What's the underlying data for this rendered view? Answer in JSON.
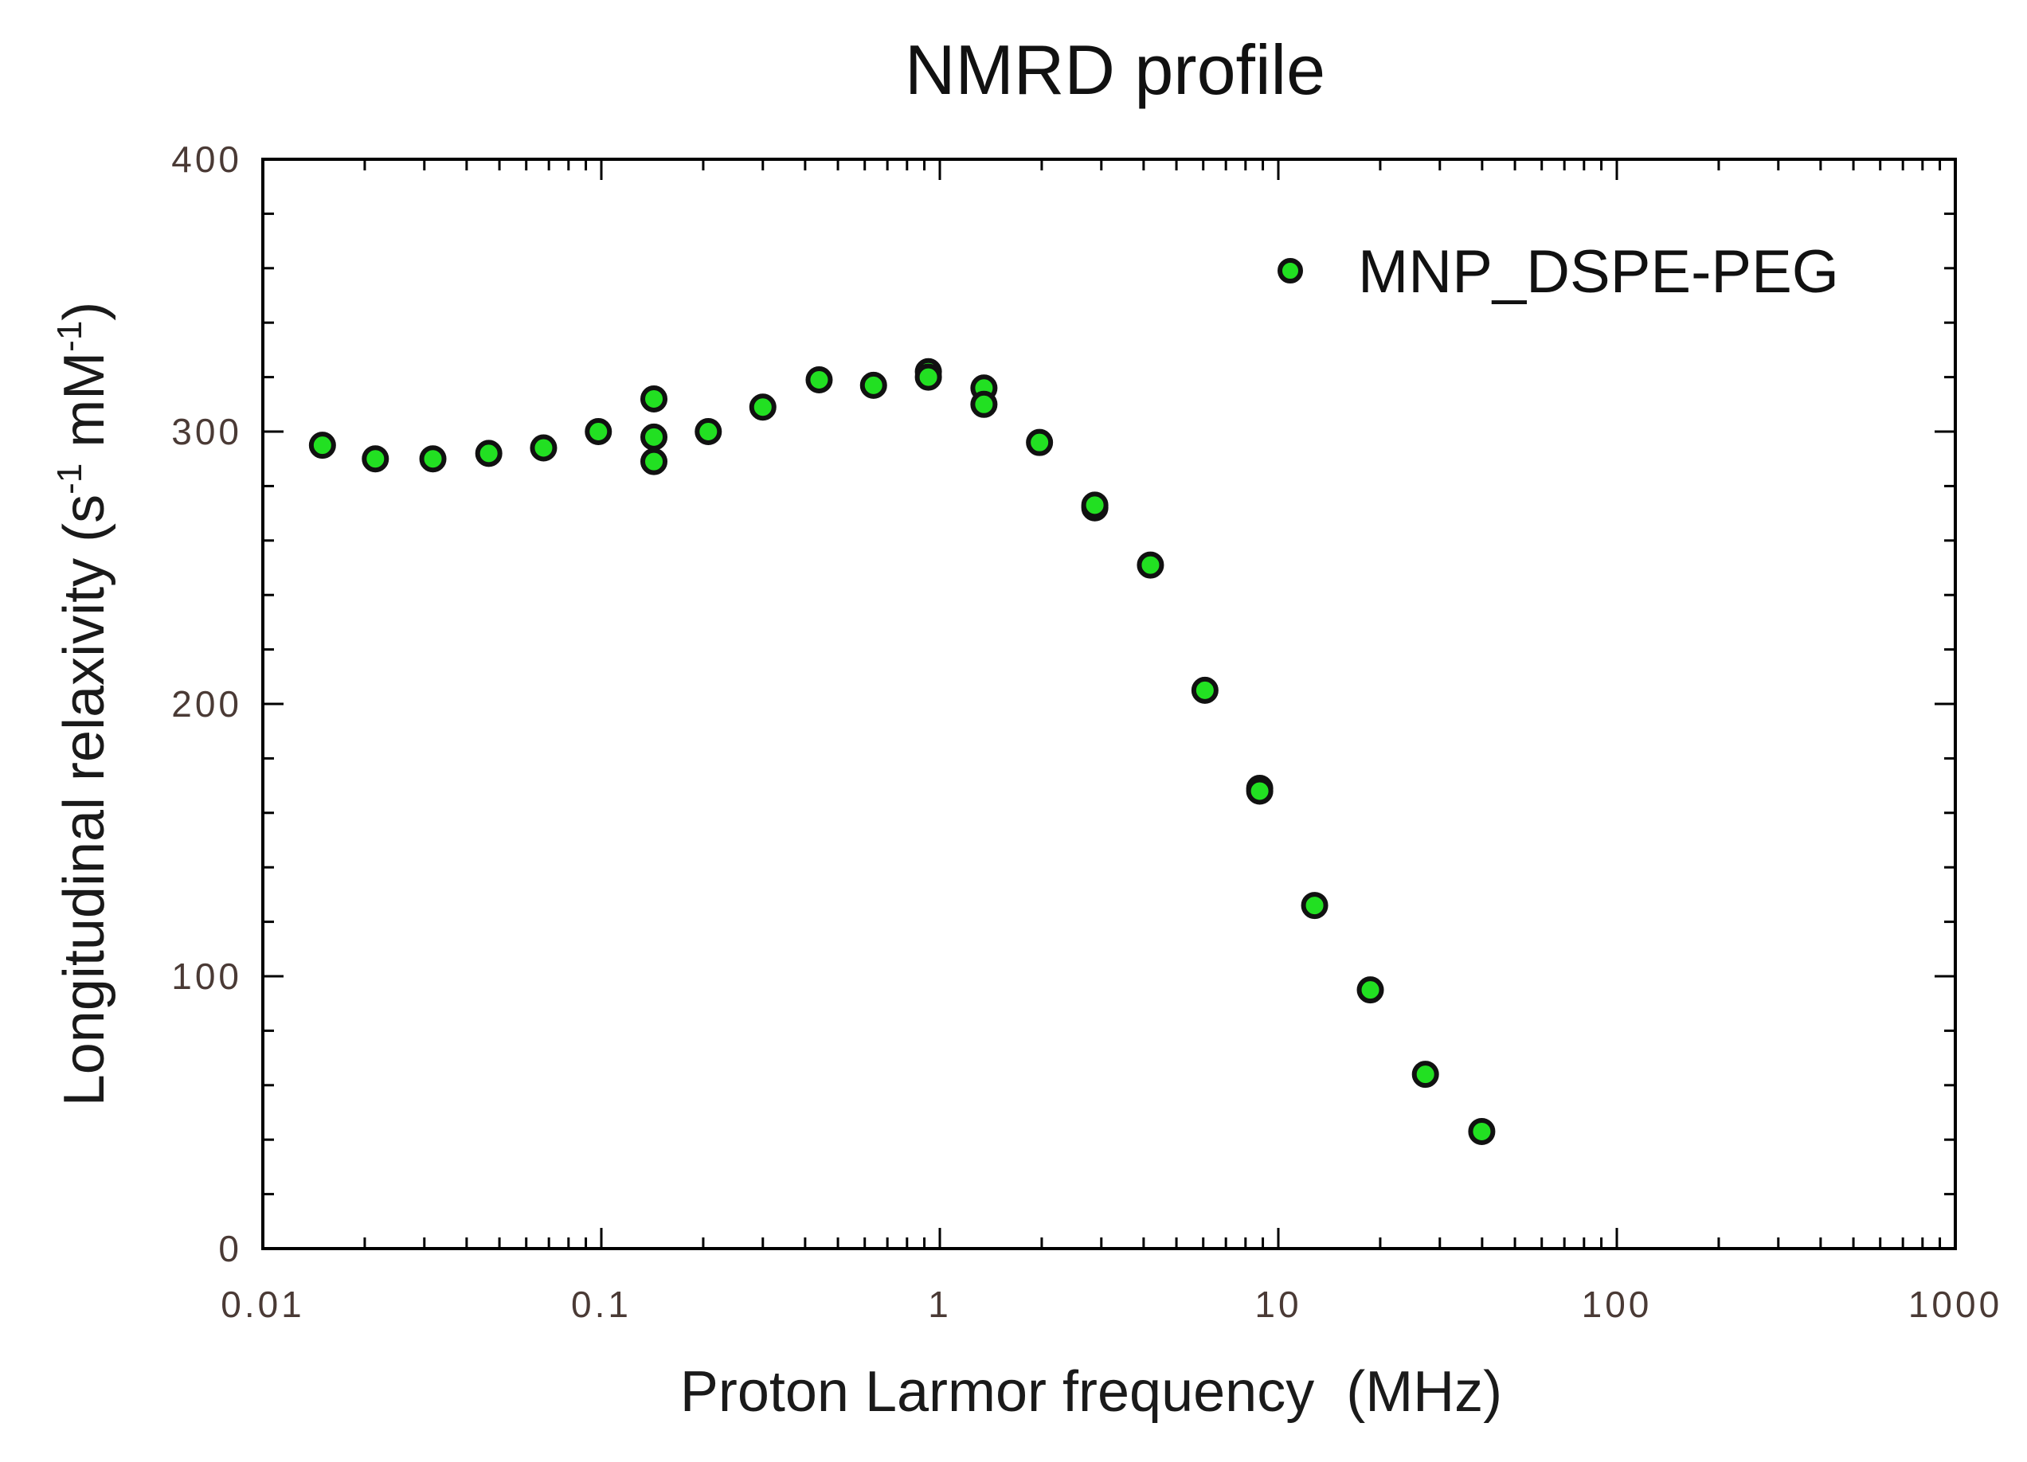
{
  "chart_data": {
    "type": "scatter",
    "title": "NMRD profile",
    "xlabel": "Proton Larmor frequency  (MHz)",
    "ylabel": "Longitudinal relaxivity (s",
    "ylabel_sup1": "-1",
    "ylabel_mid": " mM",
    "ylabel_sup2": "-1",
    "ylabel_end": ")",
    "xscale": "log",
    "xlim": [
      0.01,
      1000
    ],
    "ylim": [
      0,
      400
    ],
    "x_ticks": [
      0.01,
      0.1,
      1,
      10,
      100,
      1000
    ],
    "x_tick_labels": [
      "0.01",
      "0.1",
      "1",
      "10",
      "100",
      "1000"
    ],
    "y_ticks": [
      0,
      100,
      200,
      300,
      400
    ],
    "y_tick_labels": [
      "0",
      "100",
      "200",
      "300",
      "400"
    ],
    "legend_position": "top-right",
    "series": [
      {
        "name": "MNP_DSPE-PEG",
        "color": "#22e022",
        "x": [
          0.015,
          0.0215,
          0.0318,
          0.0465,
          0.0675,
          0.098,
          0.143,
          0.143,
          0.143,
          0.207,
          0.3,
          0.44,
          0.637,
          0.925,
          0.925,
          1.35,
          1.35,
          1.97,
          2.87,
          2.87,
          4.19,
          6.07,
          8.81,
          8.81,
          12.8,
          18.7,
          27.2,
          39.9
        ],
        "y": [
          295,
          290,
          290,
          292,
          294,
          300,
          312,
          298,
          289,
          300,
          309,
          319,
          317,
          322,
          320,
          316,
          310,
          296,
          272,
          273,
          251,
          205,
          169,
          168,
          126,
          95,
          64,
          43
        ]
      }
    ]
  }
}
